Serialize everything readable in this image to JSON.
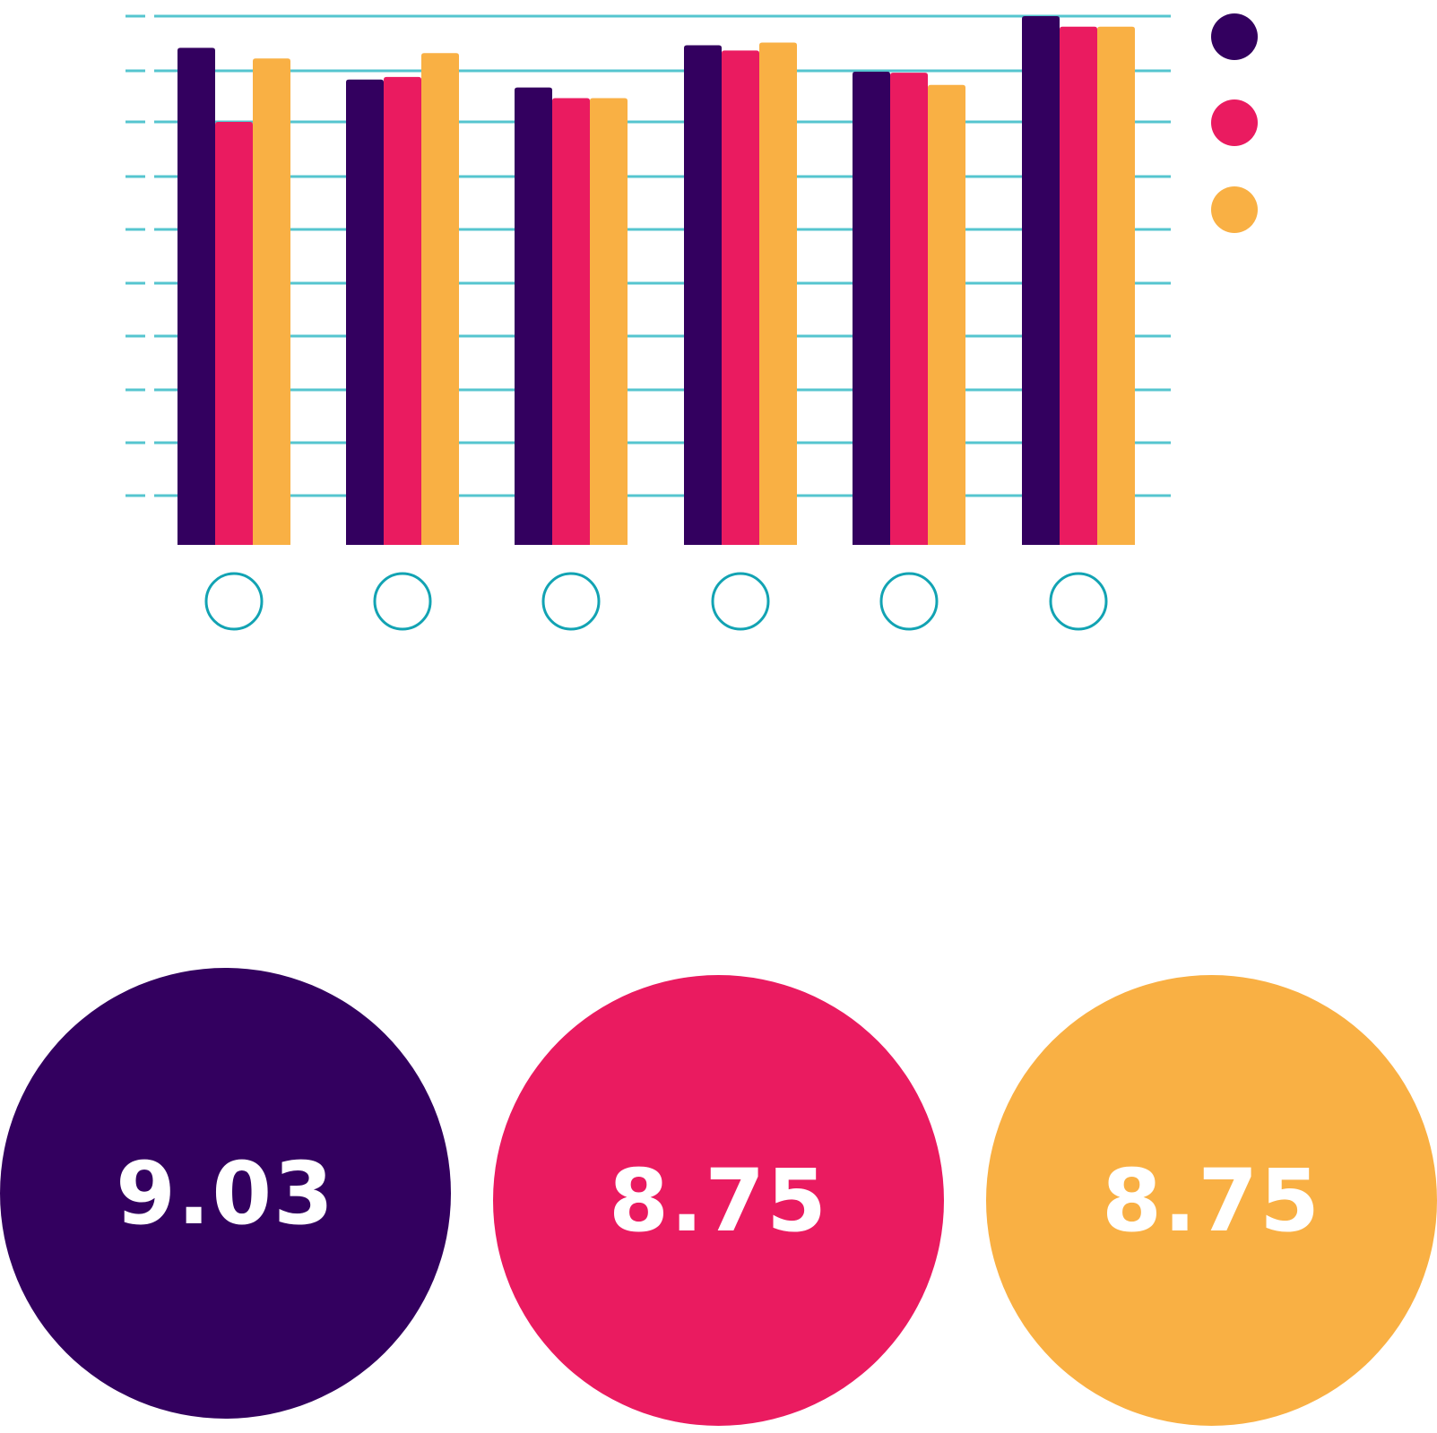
{
  "colors": {
    "series_a": "#33005f",
    "series_b": "#ea1b60",
    "series_c": "#f9b044",
    "grid": "#55c5cf",
    "axis_marker": "#12a3b3",
    "stat_text": "#ffffff"
  },
  "chart_data": {
    "type": "bar",
    "categories": [
      "",
      "",
      "",
      "",
      "",
      ""
    ],
    "series": [
      {
        "color": "#33005f",
        "values": [
          9.4,
          8.8,
          8.65,
          9.45,
          8.95,
          10.0
        ]
      },
      {
        "color": "#ea1b60",
        "values": [
          8.0,
          8.85,
          8.45,
          9.35,
          8.93,
          9.8
        ]
      },
      {
        "color": "#f9b044",
        "values": [
          9.2,
          9.3,
          8.45,
          9.5,
          8.7,
          9.8
        ]
      }
    ],
    "ylim": [
      0,
      10
    ],
    "grid": true,
    "legend": "right",
    "title": "",
    "xlabel": "",
    "ylabel": ""
  },
  "stats": [
    {
      "value": "9.03",
      "color": "#33005f"
    },
    {
      "value": "8.75",
      "color": "#ea1b60"
    },
    {
      "value": "8.75",
      "color": "#f9b044"
    }
  ]
}
